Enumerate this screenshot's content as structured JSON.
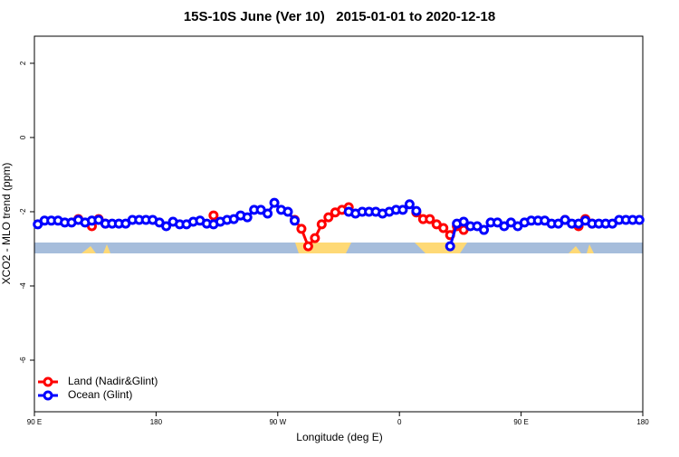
{
  "chart_data": {
    "type": "line",
    "title": "15S-10S June (Ver 10)   2015-01-01 to 2020-12-18",
    "x_label": "Longitude (deg E)",
    "y_label": "XCO2 - MLO trend (ppm)",
    "x": [
      92.5,
      97.5,
      102.5,
      107.5,
      112.5,
      117.5,
      122.5,
      127.5,
      132.5,
      137.5,
      142.5,
      147.5,
      152.5,
      157.5,
      162.5,
      167.5,
      172.5,
      177.5,
      182.5,
      187.5,
      192.5,
      197.5,
      202.5,
      207.5,
      212.5,
      217.5,
      222.5,
      227.5,
      232.5,
      237.5,
      242.5,
      247.5,
      252.5,
      257.5,
      262.5,
      267.5,
      272.5,
      277.5,
      282.5,
      287.5,
      292.5,
      297.5,
      302.5,
      307.5,
      312.5,
      317.5,
      322.5,
      327.5,
      332.5,
      337.5,
      342.5,
      347.5,
      352.5,
      357.5,
      362.5,
      367.5,
      372.5,
      377.5,
      382.5,
      387.5,
      392.5,
      397.5,
      402.5,
      407.5,
      412.5,
      417.5,
      422.5,
      427.5,
      432.5,
      437.5,
      442.5,
      447.5,
      452.5,
      457.5,
      462.5,
      467.5,
      472.5,
      477.5,
      482.5,
      487.5,
      492.5,
      497.5,
      502.5,
      507.5,
      512.5,
      517.5,
      522.5,
      527.5,
      532.5,
      537.5
    ],
    "series": [
      {
        "name": "Land (Nadir&Glint)",
        "color": "#ff0000",
        "values": [
          null,
          null,
          null,
          null,
          null,
          null,
          -2.2,
          null,
          -2.39,
          -2.2,
          -2.32,
          null,
          null,
          null,
          null,
          null,
          null,
          null,
          null,
          null,
          null,
          null,
          null,
          null,
          null,
          null,
          -2.1,
          null,
          null,
          null,
          null,
          null,
          null,
          null,
          null,
          null,
          null,
          null,
          -2.22,
          -2.46,
          -2.93,
          -2.71,
          -2.34,
          -2.15,
          -2.02,
          -1.95,
          -1.88,
          null,
          null,
          null,
          null,
          null,
          null,
          null,
          null,
          null,
          -2.02,
          -2.2,
          -2.2,
          -2.34,
          -2.44,
          -2.63,
          -2.39,
          -2.49,
          null,
          null,
          null,
          null,
          null,
          null,
          null,
          null,
          null,
          null,
          null,
          null,
          null,
          null,
          -2.22,
          null,
          -2.39,
          -2.2,
          -2.32,
          null,
          null,
          null,
          null,
          null,
          null,
          null
        ]
      },
      {
        "name": "Ocean (Glint)",
        "color": "#0000ff",
        "values": [
          -2.34,
          -2.24,
          -2.24,
          -2.24,
          -2.29,
          -2.29,
          -2.22,
          -2.29,
          -2.24,
          -2.22,
          -2.32,
          -2.32,
          -2.32,
          -2.32,
          -2.22,
          -2.22,
          -2.22,
          -2.22,
          -2.29,
          -2.39,
          -2.27,
          -2.34,
          -2.34,
          -2.27,
          -2.24,
          -2.32,
          -2.34,
          -2.27,
          -2.22,
          -2.2,
          -2.1,
          -2.15,
          -1.95,
          -1.95,
          -2.05,
          -1.76,
          -1.95,
          -2.0,
          -2.24,
          null,
          null,
          null,
          null,
          null,
          null,
          null,
          -2.0,
          -2.05,
          -2.0,
          -2.0,
          -2.0,
          -2.05,
          -2.0,
          -1.95,
          -1.95,
          -1.8,
          -1.98,
          null,
          null,
          null,
          null,
          -2.93,
          -2.32,
          -2.27,
          -2.39,
          -2.39,
          -2.49,
          -2.29,
          -2.29,
          -2.39,
          -2.29,
          -2.39,
          -2.29,
          -2.24,
          -2.24,
          -2.24,
          -2.32,
          -2.32,
          -2.22,
          -2.32,
          -2.32,
          -2.24,
          -2.32,
          -2.32,
          -2.32,
          -2.32,
          -2.22,
          -2.22,
          -2.22,
          -2.22
        ]
      }
    ],
    "xlim": [
      90,
      540
    ],
    "xticks": [
      {
        "value": 90,
        "label": "90 E"
      },
      {
        "value": 180,
        "label": "180"
      },
      {
        "value": 270,
        "label": "90 W"
      },
      {
        "value": 360,
        "label": "0"
      },
      {
        "value": 450,
        "label": "90 E"
      },
      {
        "value": 540,
        "label": "180"
      }
    ],
    "ylim": [
      -7.39,
      2.73
    ],
    "yticks": [
      2,
      0,
      -2,
      -4,
      -6
    ],
    "legend_position": "bottom-left"
  }
}
